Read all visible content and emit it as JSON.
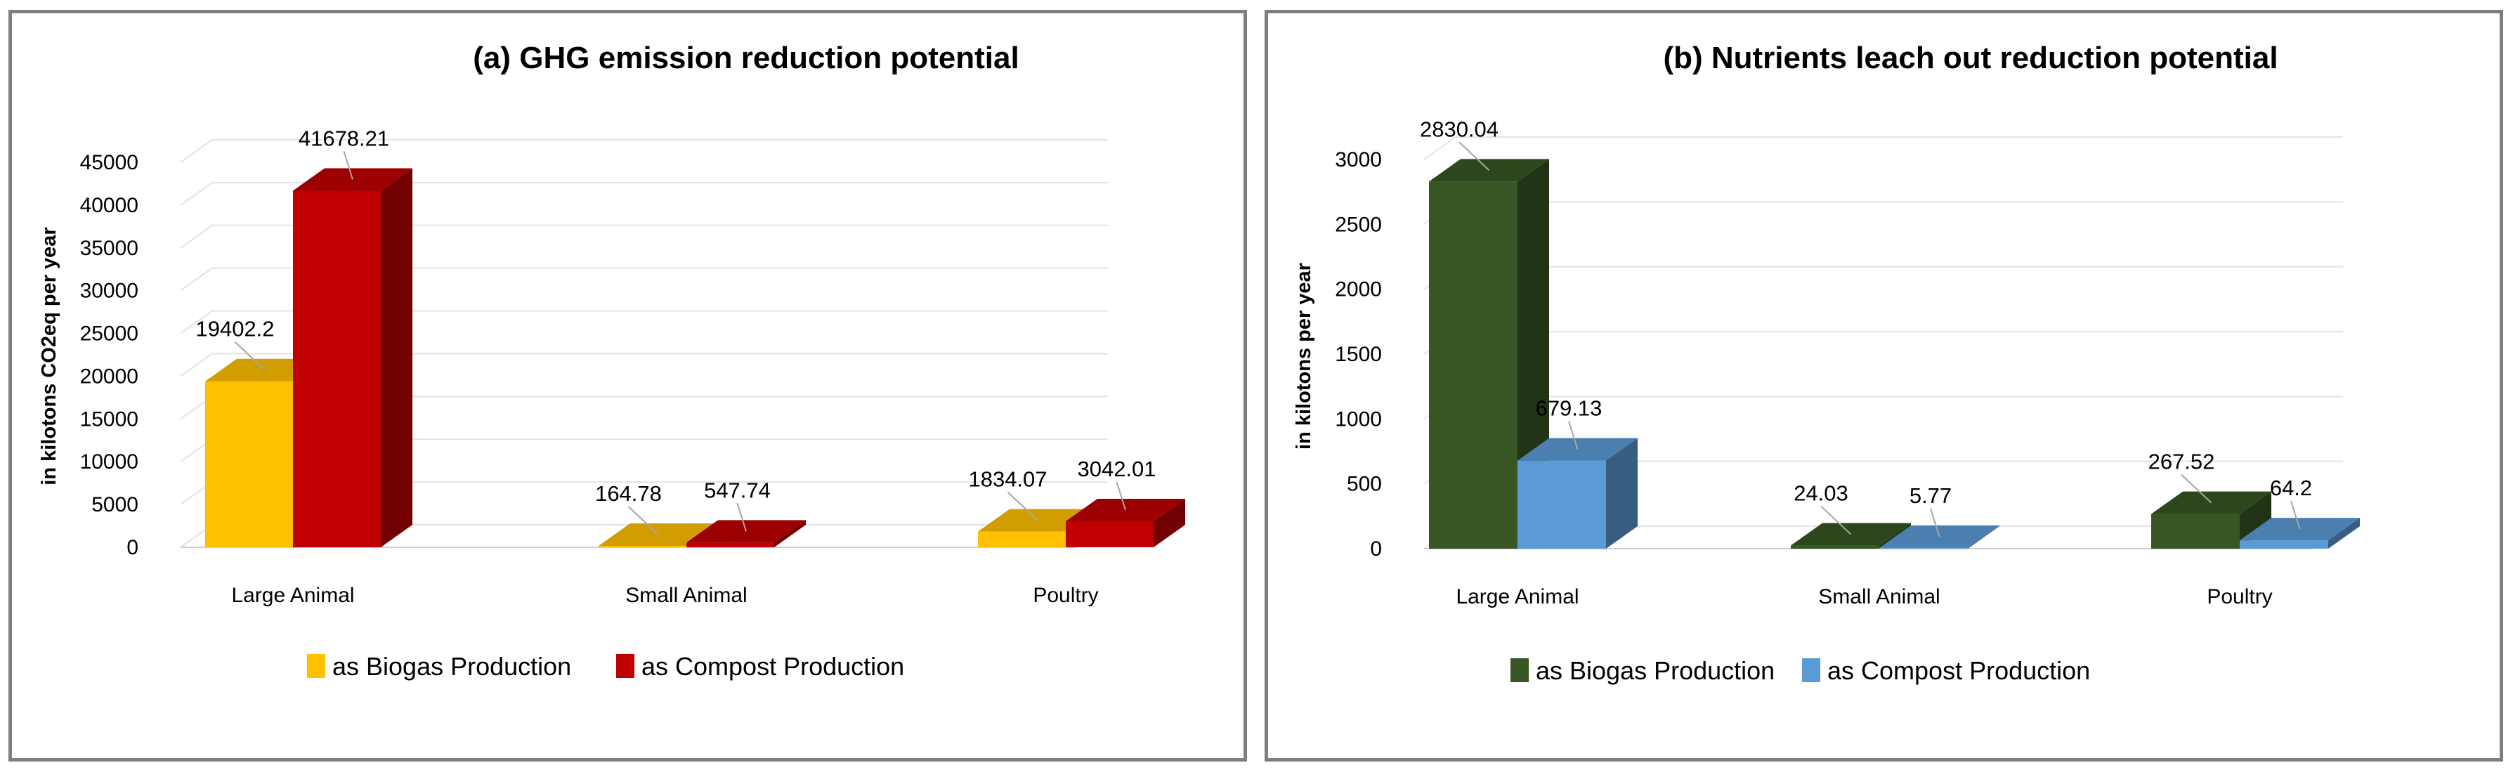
{
  "charts": [
    {
      "title": "(a) GHG emission reduction potential",
      "ylabel": "in kilotons CO2eq per year",
      "categories": [
        "Large Animal",
        "Small Animal",
        "Poultry"
      ],
      "legend": [
        "as Biogas Production",
        "as Compost Production"
      ]
    },
    {
      "title": "(b) Nutrients leach out reduction potential",
      "ylabel": "in kilotons per year",
      "categories": [
        "Large Animal",
        "Small Animal",
        "Poultry"
      ],
      "legend": [
        "as Biogas Production",
        "as Compost Production"
      ]
    }
  ],
  "chart_data": [
    {
      "type": "bar",
      "style": "3d-clustered-column",
      "title": "(a) GHG emission reduction potential",
      "xlabel": "",
      "ylabel": "in kilotons CO2eq per year",
      "categories": [
        "Large Animal",
        "Small Animal",
        "Poultry"
      ],
      "series": [
        {
          "name": "as Biogas Production",
          "values": [
            19402.2,
            164.78,
            1834.07
          ],
          "labels": [
            "19402.2",
            "164.78",
            "1834.07"
          ],
          "color": "#ffc000"
        },
        {
          "name": "as Compost Production",
          "values": [
            41678.21,
            547.74,
            3042.01
          ],
          "labels": [
            "41678.21",
            "547.74",
            "3042.01"
          ],
          "color": "#c00000"
        }
      ],
      "ylim": [
        0,
        45000
      ],
      "yticks": [
        0,
        5000,
        10000,
        15000,
        20000,
        25000,
        30000,
        35000,
        40000,
        45000
      ],
      "grid": true,
      "legend_position": "bottom"
    },
    {
      "type": "bar",
      "style": "3d-clustered-column",
      "title": "(b) Nutrients leach out reduction potential",
      "xlabel": "",
      "ylabel": "in kilotons per year",
      "categories": [
        "Large Animal",
        "Small Animal",
        "Poultry"
      ],
      "series": [
        {
          "name": "as Biogas Production",
          "values": [
            2830.04,
            24.03,
            267.52
          ],
          "labels": [
            "2830.04",
            "24.03",
            "267.52"
          ],
          "color": "#375623"
        },
        {
          "name": "as Compost Production",
          "values": [
            679.13,
            5.77,
            64.2
          ],
          "labels": [
            "679.13",
            "5.77",
            "64.2"
          ],
          "color": "#5b9bd5"
        }
      ],
      "ylim": [
        0,
        3000
      ],
      "yticks": [
        0,
        500,
        1000,
        1500,
        2000,
        2500,
        3000
      ],
      "grid": true,
      "legend_position": "bottom"
    }
  ]
}
